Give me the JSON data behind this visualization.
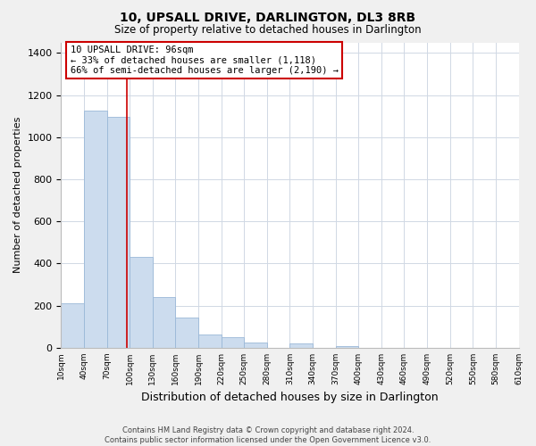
{
  "title": "10, UPSALL DRIVE, DARLINGTON, DL3 8RB",
  "subtitle": "Size of property relative to detached houses in Darlington",
  "xlabel": "Distribution of detached houses by size in Darlington",
  "ylabel": "Number of detached properties",
  "bar_color": "#ccdcee",
  "bar_edge_color": "#9ab8d8",
  "annotation_box_color": "#ffffff",
  "annotation_box_edge": "#cc0000",
  "vline_color": "#cc0000",
  "vline_x": 96,
  "annotation_title": "10 UPSALL DRIVE: 96sqm",
  "annotation_line1": "← 33% of detached houses are smaller (1,118)",
  "annotation_line2": "66% of semi-detached houses are larger (2,190) →",
  "footer1": "Contains HM Land Registry data © Crown copyright and database right 2024.",
  "footer2": "Contains public sector information licensed under the Open Government Licence v3.0.",
  "bin_edges": [
    10,
    40,
    70,
    100,
    130,
    160,
    190,
    220,
    250,
    280,
    310,
    340,
    370,
    400,
    430,
    460,
    490,
    520,
    550,
    580,
    610
  ],
  "bar_heights": [
    210,
    1125,
    1095,
    430,
    240,
    145,
    65,
    50,
    25,
    0,
    20,
    0,
    10,
    0,
    0,
    0,
    0,
    0,
    0,
    0
  ],
  "ylim": [
    0,
    1450
  ],
  "yticks": [
    0,
    200,
    400,
    600,
    800,
    1000,
    1200,
    1400
  ],
  "background_color": "#f0f0f0",
  "plot_background": "#ffffff",
  "grid_color": "#d0d8e4"
}
